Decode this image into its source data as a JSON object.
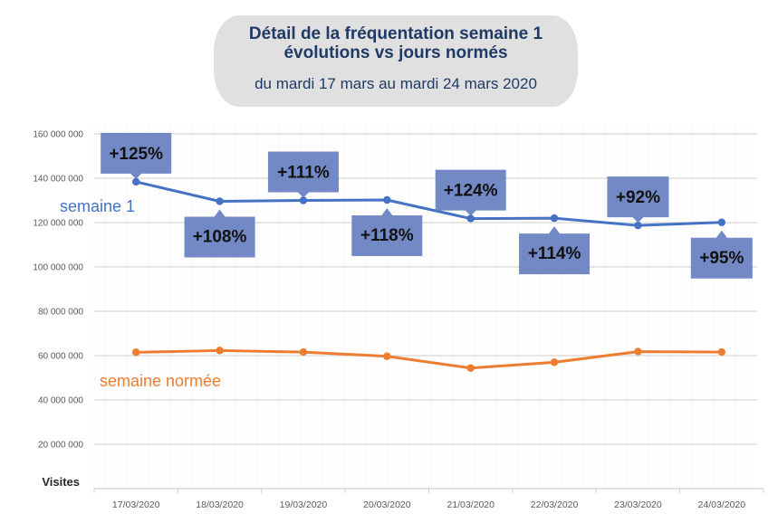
{
  "header": {
    "title_line1": "Détail de la fréquentation semaine 1",
    "title_line2": "évolutions vs jours normés",
    "subtitle": "du mardi 17 mars au mardi 24 mars 2020"
  },
  "chart_data": {
    "type": "line",
    "title": "Détail de la fréquentation semaine 1 évolutions vs jours normés",
    "subtitle": "du mardi 17 mars au mardi 24 mars 2020",
    "xlabel": "",
    "ylabel": "Visites",
    "ylim": [
      0,
      160000000
    ],
    "yticks": [
      20000000,
      40000000,
      60000000,
      80000000,
      100000000,
      120000000,
      140000000,
      160000000
    ],
    "ytick_labels": [
      "20 000 000",
      "40 000 000",
      "60 000 000",
      "80 000 000",
      "100 000 000",
      "120 000 000",
      "140 000 000",
      "160 000 000"
    ],
    "grid": true,
    "legend": "inline",
    "categories": [
      "17/03/2020",
      "18/03/2020",
      "19/03/2020",
      "20/03/2020",
      "21/03/2020",
      "22/03/2020",
      "23/03/2020",
      "24/03/2020"
    ],
    "series": [
      {
        "name": "semaine 1",
        "color": "#4472c4",
        "values": [
          138400000,
          129600000,
          130000000,
          130200000,
          121800000,
          122000000,
          118700000,
          120100000
        ],
        "annotations": [
          "+125%",
          "+108%",
          "+111%",
          "+118%",
          "+124%",
          "+114%",
          "+92%",
          "+95%"
        ],
        "annotation_positions": [
          "above",
          "below",
          "above",
          "below",
          "above",
          "below",
          "above",
          "below"
        ]
      },
      {
        "name": "semaine normée",
        "color": "#ed7d31",
        "values": [
          61500000,
          62300000,
          61600000,
          59700000,
          54400000,
          57000000,
          61800000,
          61600000
        ]
      }
    ],
    "callout_color": "#6a83c2"
  }
}
